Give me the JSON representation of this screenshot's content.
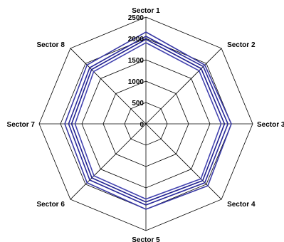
{
  "chart_data": {
    "type": "radar",
    "categories": [
      "Sector 1",
      "Sector 2",
      "Sector 3",
      "Sector 4",
      "Sector 5",
      "Sector 6",
      "Sector 7",
      "Sector 8"
    ],
    "r_ticks": [
      0,
      500,
      1000,
      1500,
      2000,
      2500
    ],
    "rlim": [
      0,
      2500
    ],
    "grid": true,
    "legend": "none",
    "series": [
      {
        "values": [
          2150,
          1950,
          2000,
          2050,
          2000,
          1950,
          1900,
          1950
        ],
        "color": "#3a3aa6"
      },
      {
        "values": [
          2050,
          1900,
          1920,
          1950,
          1900,
          1860,
          1810,
          1860
        ],
        "color": "#2a2a9a"
      },
      {
        "values": [
          1980,
          1830,
          1840,
          1880,
          1830,
          1790,
          1740,
          1800
        ],
        "color": "#1f1f8f"
      },
      {
        "values": [
          1900,
          1760,
          1760,
          1820,
          1760,
          1720,
          1660,
          1730
        ],
        "color": "#4444b0"
      }
    ]
  }
}
